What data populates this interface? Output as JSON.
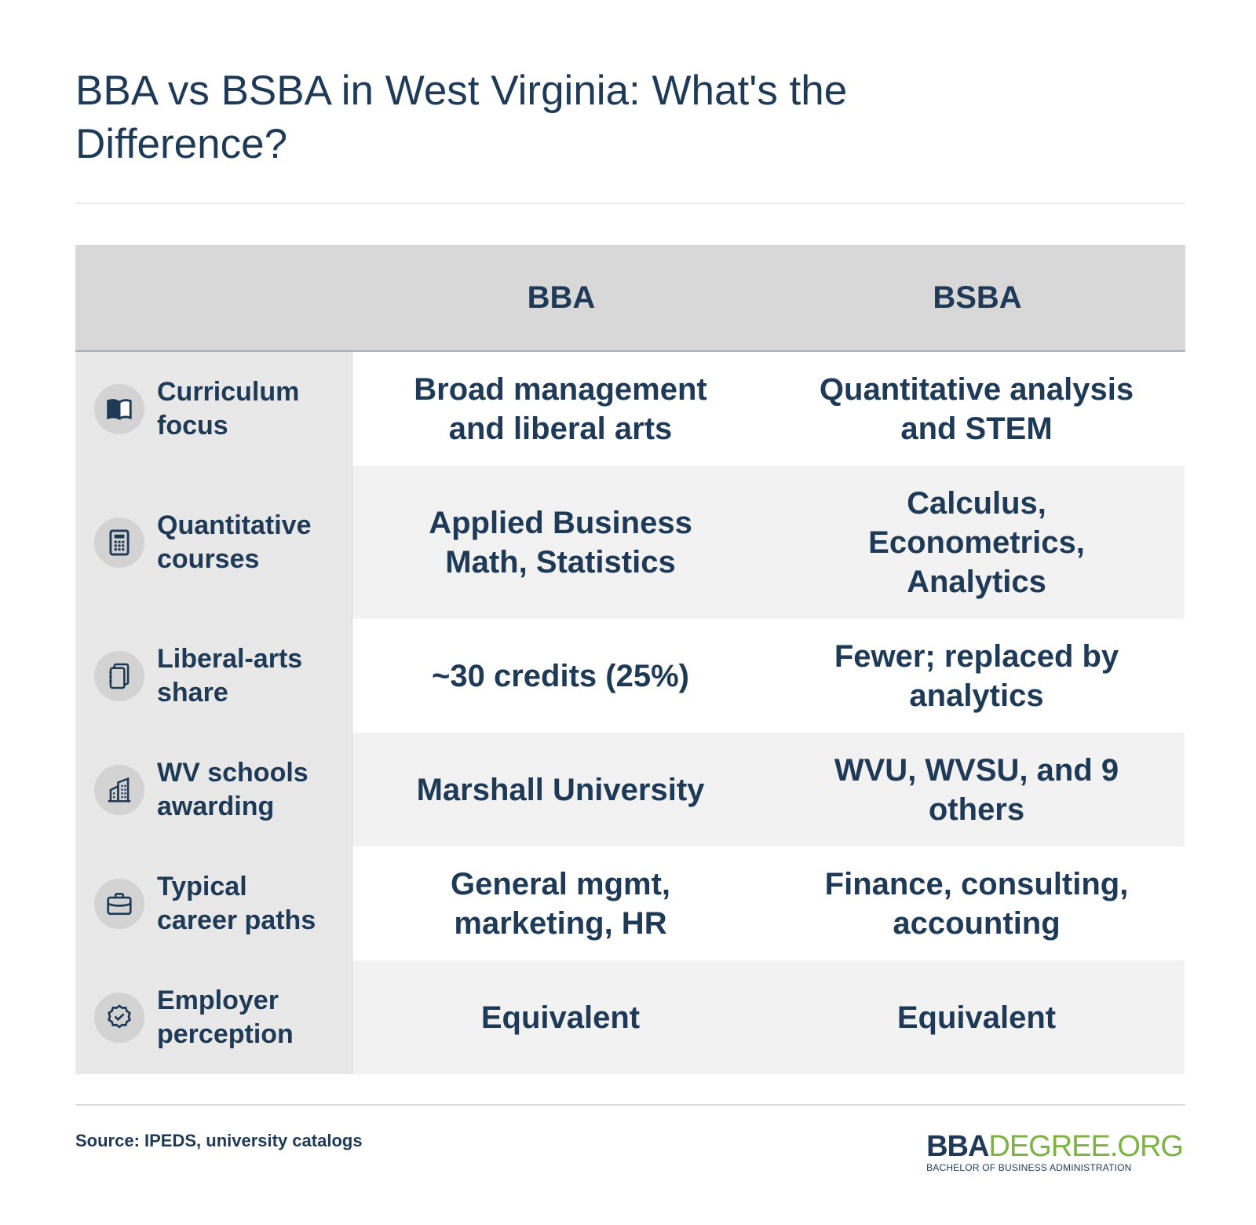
{
  "title": "BBA vs BSBA in West Virginia: What's the Difference?",
  "columns": [
    "BBA",
    "BSBA"
  ],
  "rows": [
    {
      "label": "Curriculum focus",
      "icon": "book-icon",
      "bba": "Broad management and liberal arts",
      "bsba": "Quantitative analysis and STEM"
    },
    {
      "label": "Quantitative courses",
      "icon": "calculator-icon",
      "bba": "Applied Business Math, Statistics",
      "bsba": "Calculus, Econometrics, Analytics"
    },
    {
      "label": "Liberal-arts share",
      "icon": "notebook-icon",
      "bba": "~30 credits (25%)",
      "bsba": "Fewer; replaced by analytics"
    },
    {
      "label": "WV schools awarding",
      "icon": "buildings-icon",
      "bba": "Marshall University",
      "bsba": "WVU, WVSU, and 9 others"
    },
    {
      "label": "Typical career paths",
      "icon": "briefcase-icon",
      "bba": "General mgmt, marketing, HR",
      "bsba": "Finance, consulting, accounting"
    },
    {
      "label": "Employer perception",
      "icon": "badge-check-icon",
      "bba": "Equivalent",
      "bsba": "Equivalent"
    }
  ],
  "source": "Source: IPEDS, university catalogs",
  "logo": {
    "bold": "BBA",
    "light": "DEGREE.ORG",
    "tagline": "BACHELOR OF BUSINESS ADMINISTRATION"
  },
  "colors": {
    "text": "#1e3a56",
    "header_bg": "#d8d8d8",
    "label_bg": "#e8e8e8",
    "alt_row_bg": "#f2f2f2",
    "logo_green": "#7cb342"
  }
}
